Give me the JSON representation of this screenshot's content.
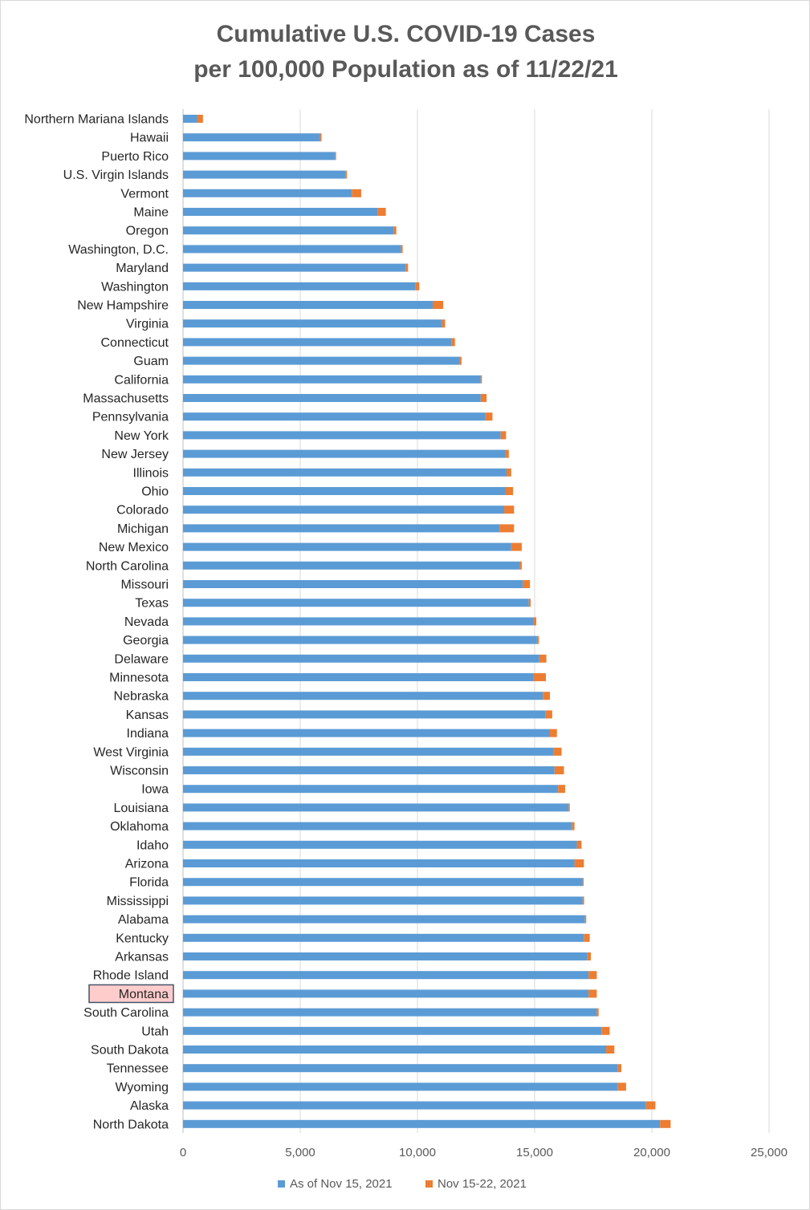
{
  "chart_data": {
    "type": "bar",
    "orientation": "horizontal",
    "stacked": true,
    "title_line1": "Cumulative U.S. COVID-19 Cases",
    "title_line2": "per 100,000 Population as of 11/22/21",
    "xlim": [
      0,
      25000
    ],
    "xticks": [
      0,
      5000,
      10000,
      15000,
      20000,
      25000
    ],
    "xtick_labels": [
      "0",
      "5,000",
      "10,000",
      "15,000",
      "20,000",
      "25,000"
    ],
    "grid": "vertical",
    "legend_position": "bottom",
    "highlighted_category": "Montana",
    "highlight_fill": "#ffcccc",
    "highlight_border": "#44546a",
    "categories": [
      "Northern Mariana Islands",
      "Hawaii",
      "Puerto Rico",
      "U.S. Virgin Islands",
      "Vermont",
      "Maine",
      "Oregon",
      "Washington, D.C.",
      "Maryland",
      "Washington",
      "New Hampshire",
      "Virginia",
      "Connecticut",
      "Guam",
      "California",
      "Massachusetts",
      "Pennsylvania",
      "New York",
      "New Jersey",
      "Illinois",
      "Ohio",
      "Colorado",
      "Michigan",
      "New Mexico",
      "North Carolina",
      "Missouri",
      "Texas",
      "Nevada",
      "Georgia",
      "Delaware",
      "Minnesota",
      "Nebraska",
      "Kansas",
      "Indiana",
      "West Virginia",
      "Wisconsin",
      "Iowa",
      "Louisiana",
      "Oklahoma",
      "Idaho",
      "Arizona",
      "Florida",
      "Mississippi",
      "Alabama",
      "Kentucky",
      "Arkansas",
      "Rhode Island",
      "Montana",
      "South Carolina",
      "Utah",
      "South Dakota",
      "Tennessee",
      "Wyoming",
      "Alaska",
      "North Dakota"
    ],
    "series": [
      {
        "name": "As of Nov 15, 2021",
        "color": "#5b9bd5",
        "values": [
          600,
          5850,
          6500,
          6930,
          7200,
          8300,
          9000,
          9300,
          9500,
          9900,
          10650,
          11050,
          11450,
          11800,
          12700,
          12700,
          12900,
          13550,
          13750,
          13800,
          13750,
          13700,
          13500,
          14000,
          14350,
          14500,
          14750,
          14950,
          15100,
          15200,
          14950,
          15350,
          15450,
          15650,
          15800,
          15850,
          16000,
          16450,
          16600,
          16800,
          16700,
          17050,
          17050,
          17150,
          17100,
          17250,
          17300,
          17300,
          17650,
          17850,
          18050,
          18550,
          18550,
          19750,
          20350
        ]
      },
      {
        "name": "Nov 15-22, 2021",
        "color": "#ed7d31",
        "values": [
          250,
          60,
          30,
          60,
          400,
          350,
          100,
          70,
          100,
          180,
          450,
          130,
          150,
          80,
          50,
          250,
          300,
          230,
          150,
          200,
          330,
          420,
          620,
          450,
          100,
          300,
          80,
          120,
          80,
          300,
          530,
          300,
          300,
          300,
          350,
          400,
          300,
          50,
          100,
          200,
          400,
          40,
          60,
          50,
          250,
          150,
          350,
          350,
          80,
          350,
          350,
          150,
          350,
          400,
          450
        ]
      }
    ]
  }
}
